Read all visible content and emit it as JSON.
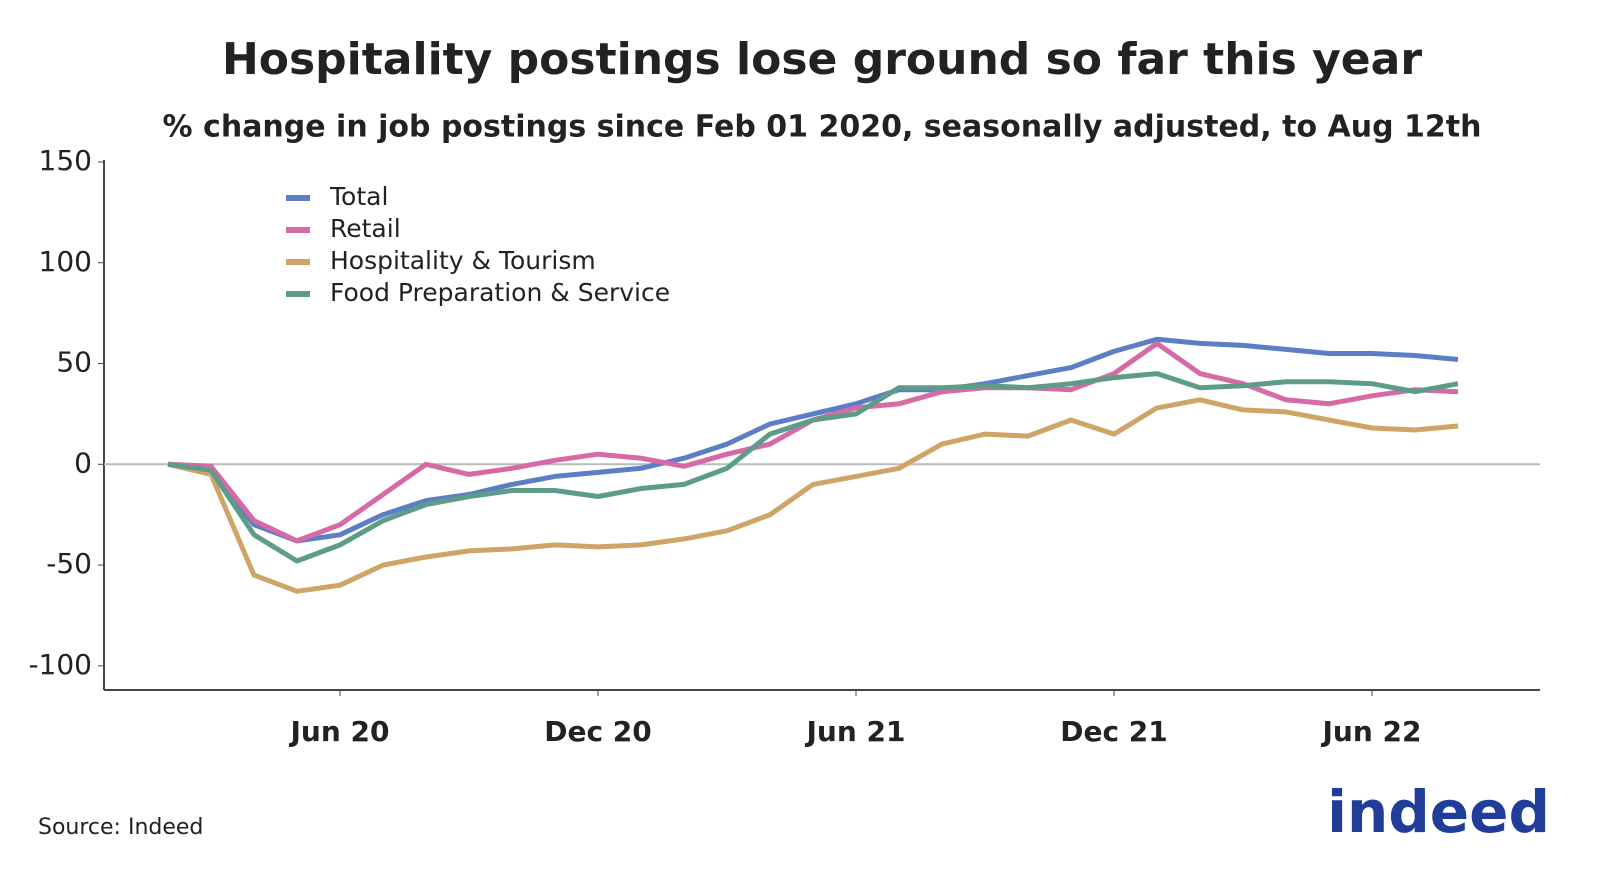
{
  "chart_data": {
    "type": "line",
    "title": "Hospitality postings lose ground so far this year",
    "subtitle": "% change in job postings since Feb 01 2020, seasonally adjusted, to Aug 12th",
    "source": "Source: Indeed",
    "logo": "indeed",
    "x": [
      "2020-02",
      "2020-03",
      "2020-04",
      "2020-05",
      "2020-06",
      "2020-07",
      "2020-08",
      "2020-09",
      "2020-10",
      "2020-11",
      "2020-12",
      "2021-01",
      "2021-02",
      "2021-03",
      "2021-04",
      "2021-05",
      "2021-06",
      "2021-07",
      "2021-08",
      "2021-09",
      "2021-10",
      "2021-11",
      "2021-12",
      "2022-01",
      "2022-02",
      "2022-03",
      "2022-04",
      "2022-05",
      "2022-06",
      "2022-07",
      "2022-08"
    ],
    "xticks": [
      {
        "value": "2020-06",
        "label": "Jun 20"
      },
      {
        "value": "2020-12",
        "label": "Dec 20"
      },
      {
        "value": "2021-06",
        "label": "Jun 21"
      },
      {
        "value": "2021-12",
        "label": "Dec 21"
      },
      {
        "value": "2022-06",
        "label": "Jun 22"
      }
    ],
    "ylim": [
      -112,
      150
    ],
    "yticks": [
      150,
      100,
      50,
      0,
      -50,
      -100
    ],
    "legend": "upper left",
    "series": [
      {
        "name": "Total",
        "color": "#5b7ec4",
        "values": [
          0,
          -2,
          -30,
          -38,
          -35,
          -25,
          -18,
          -15,
          -10,
          -6,
          -4,
          -2,
          3,
          10,
          20,
          25,
          30,
          37,
          37,
          40,
          44,
          48,
          56,
          62,
          60,
          59,
          57,
          55,
          55,
          54,
          52
        ]
      },
      {
        "name": "Retail",
        "color": "#d56aa6",
        "values": [
          0,
          -1,
          -28,
          -38,
          -30,
          -15,
          0,
          -5,
          -2,
          2,
          5,
          3,
          -1,
          5,
          10,
          22,
          28,
          30,
          36,
          38,
          38,
          37,
          45,
          60,
          45,
          40,
          32,
          30,
          34,
          37,
          36
        ]
      },
      {
        "name": "Hospitality & Tourism",
        "color": "#cfa466",
        "values": [
          0,
          -5,
          -55,
          -63,
          -60,
          -50,
          -46,
          -43,
          -42,
          -40,
          -41,
          -40,
          -37,
          -33,
          -25,
          -10,
          -6,
          -2,
          10,
          15,
          14,
          22,
          15,
          28,
          32,
          27,
          26,
          22,
          18,
          17,
          19
        ]
      },
      {
        "name": "Food Preparation & Service",
        "color": "#5e9c8a",
        "values": [
          0,
          -3,
          -35,
          -48,
          -40,
          -28,
          -20,
          -16,
          -13,
          -13,
          -16,
          -12,
          -10,
          -2,
          15,
          22,
          25,
          38,
          38,
          39,
          38,
          40,
          43,
          45,
          38,
          39,
          41,
          41,
          40,
          36,
          40
        ]
      }
    ]
  }
}
